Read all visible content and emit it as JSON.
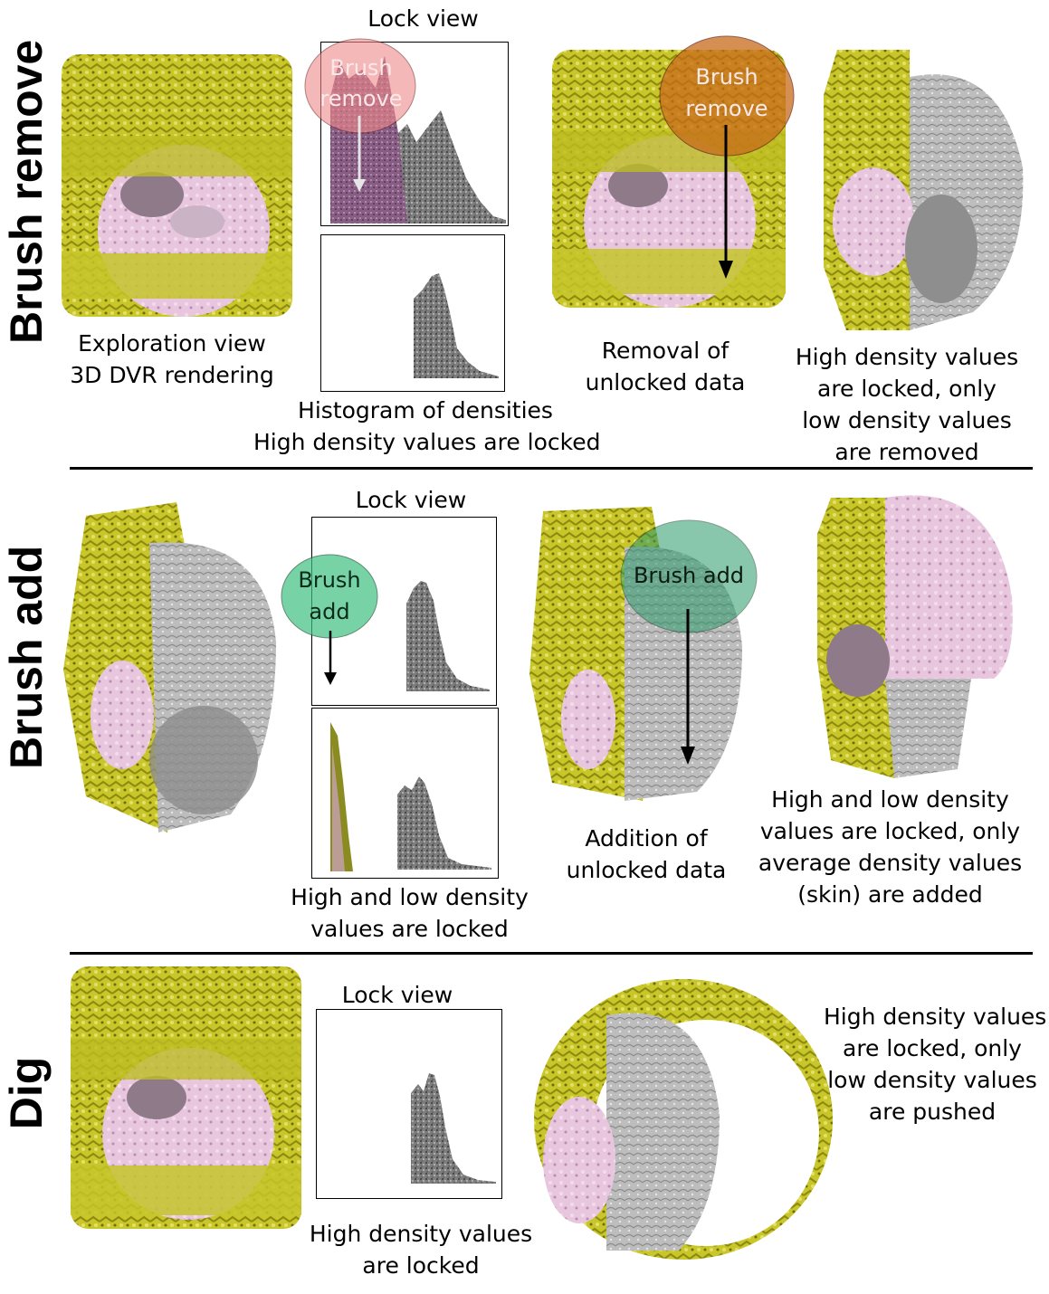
{
  "rows": [
    {
      "label": "Brush remove",
      "lock_view_title": "Lock view",
      "brush_label_line1": "Brush",
      "brush_label_line2": "remove",
      "brush_label_line1_b": "Brush",
      "brush_label_line2_b": "remove",
      "caption_left": [
        "Exploration view",
        "3D DVR rendering"
      ],
      "caption_hist": [
        "Histogram of densities",
        "High density values are locked"
      ],
      "caption_mid": [
        "Removal of",
        "unlocked data"
      ],
      "caption_right": [
        "High density values",
        "are locked, only",
        "low density values",
        "are removed"
      ]
    },
    {
      "label": "Brush add",
      "lock_view_title": "Lock view",
      "brush_label_line1": "Brush",
      "brush_label_line2": "add",
      "brush_label_b": "Brush add",
      "caption_hist": [
        "High and low  density",
        "values are locked"
      ],
      "caption_mid": [
        "Addition of",
        "unlocked data"
      ],
      "caption_right": [
        "High and low  density",
        "values are locked, only",
        "average density values",
        "(skin) are added"
      ]
    },
    {
      "label": "Dig",
      "lock_view_title": "Lock view",
      "caption_hist": [
        "High density values",
        "are locked"
      ],
      "caption_right": [
        "High density values",
        "are locked, only",
        "low density values",
        "are pushed"
      ]
    }
  ],
  "colors": {
    "tissue_yellow": "#c8c41a",
    "skin_pink": "#d9b3d3",
    "bone_gray": "#b5b5b5",
    "brush_remove_fill": "#f08a8a",
    "brush_add_fill": "#3ec07f",
    "arrow": "#000000"
  }
}
